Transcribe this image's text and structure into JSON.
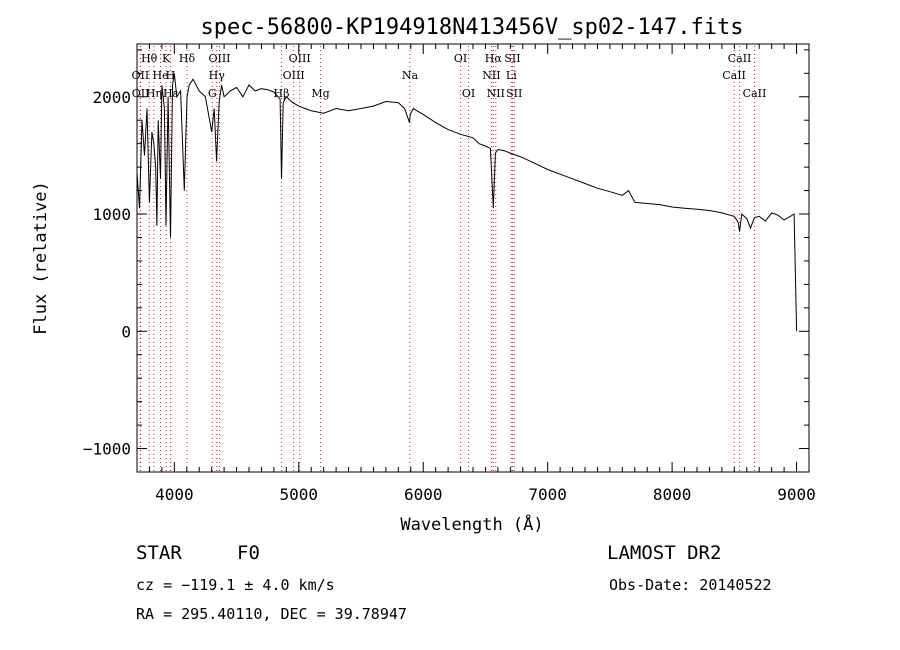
{
  "chart_data": {
    "type": "line",
    "title": "spec-56800-KP194918N413456V_sp02-147.fits",
    "xlabel": "Wavelength (Å)",
    "ylabel": "Flux (relative)",
    "xlim": [
      3700,
      9100
    ],
    "ylim": [
      -1200,
      2450
    ],
    "xticks": [
      4000,
      5000,
      6000,
      7000,
      8000,
      9000
    ],
    "yticks": [
      -1000,
      0,
      1000,
      2000
    ],
    "series": [
      {
        "name": "flux",
        "x": [
          3700,
          3720,
          3740,
          3760,
          3780,
          3800,
          3820,
          3835,
          3850,
          3860,
          3870,
          3889,
          3900,
          3920,
          3933,
          3950,
          3969,
          3985,
          4000,
          4020,
          4050,
          4080,
          4102,
          4120,
          4150,
          4200,
          4250,
          4300,
          4320,
          4340,
          4360,
          4380,
          4400,
          4450,
          4500,
          4550,
          4600,
          4650,
          4700,
          4750,
          4800,
          4850,
          4861,
          4875,
          4900,
          4950,
          5000,
          5050,
          5100,
          5150,
          5200,
          5300,
          5400,
          5500,
          5600,
          5700,
          5800,
          5850,
          5890,
          5896,
          5920,
          5950,
          6000,
          6100,
          6200,
          6300,
          6400,
          6450,
          6500,
          6540,
          6563,
          6580,
          6600,
          6650,
          6700,
          6750,
          6800,
          6900,
          7000,
          7100,
          7200,
          7300,
          7400,
          7500,
          7600,
          7650,
          7700,
          7800,
          7900,
          8000,
          8100,
          8200,
          8300,
          8400,
          8500,
          8530,
          8542,
          8560,
          8600,
          8630,
          8662,
          8700,
          8750,
          8800,
          8850,
          8900,
          8950,
          8980,
          9000
        ],
        "values": [
          1350,
          1050,
          1800,
          1500,
          1900,
          1100,
          1700,
          1600,
          1400,
          900,
          1800,
          1300,
          2100,
          1900,
          900,
          2000,
          800,
          2100,
          2200,
          2000,
          2050,
          1200,
          2000,
          2100,
          2150,
          2050,
          2000,
          1700,
          1900,
          1450,
          1950,
          2100,
          2000,
          2050,
          2080,
          2000,
          2100,
          2050,
          2070,
          2060,
          2040,
          1980,
          1300,
          1950,
          2000,
          1950,
          1920,
          1900,
          1880,
          1870,
          1860,
          1900,
          1880,
          1900,
          1920,
          1960,
          1950,
          1900,
          1780,
          1850,
          1900,
          1880,
          1850,
          1780,
          1720,
          1680,
          1650,
          1600,
          1580,
          1560,
          1050,
          1520,
          1550,
          1540,
          1520,
          1500,
          1480,
          1430,
          1380,
          1340,
          1300,
          1260,
          1220,
          1190,
          1160,
          1200,
          1100,
          1090,
          1080,
          1060,
          1050,
          1040,
          1030,
          1010,
          980,
          930,
          850,
          1000,
          960,
          880,
          970,
          980,
          940,
          1010,
          990,
          950,
          980,
          1000,
          0
        ]
      }
    ],
    "line_markers": [
      {
        "label": "Hθ",
        "wavelength": 3798,
        "row": 1
      },
      {
        "label": "OII",
        "wavelength": 3727,
        "row": 2
      },
      {
        "label": "OII",
        "wavelength": 3729,
        "row": 3
      },
      {
        "label": "Hη",
        "wavelength": 3836,
        "row": 3
      },
      {
        "label": "K",
        "wavelength": 3934,
        "row": 1
      },
      {
        "label": "He",
        "wavelength": 3889,
        "row": 2
      },
      {
        "label": "H",
        "wavelength": 3969,
        "row": 2
      },
      {
        "label": "Hε",
        "wavelength": 3970,
        "row": 3
      },
      {
        "label": "Hδ",
        "wavelength": 4102,
        "row": 1
      },
      {
        "label": "OIII",
        "wavelength": 4363,
        "row": 1
      },
      {
        "label": "Hγ",
        "wavelength": 4341,
        "row": 2
      },
      {
        "label": "G",
        "wavelength": 4305,
        "row": 3
      },
      {
        "label": "OIII",
        "wavelength": 5007,
        "row": 1
      },
      {
        "label": "OIII",
        "wavelength": 4959,
        "row": 2
      },
      {
        "label": "Hβ",
        "wavelength": 4861,
        "row": 3
      },
      {
        "label": "Mg",
        "wavelength": 5175,
        "row": 3
      },
      {
        "label": "Na",
        "wavelength": 5893,
        "row": 2
      },
      {
        "label": "OI",
        "wavelength": 6300,
        "row": 1
      },
      {
        "label": "OI",
        "wavelength": 6364,
        "row": 3
      },
      {
        "label": "Hα",
        "wavelength": 6563,
        "row": 1
      },
      {
        "label": "SII",
        "wavelength": 6717,
        "row": 1
      },
      {
        "label": "NII",
        "wavelength": 6548,
        "row": 2
      },
      {
        "label": "Li",
        "wavelength": 6708,
        "row": 2
      },
      {
        "label": "NII",
        "wavelength": 6583,
        "row": 3
      },
      {
        "label": "SII",
        "wavelength": 6731,
        "row": 3
      },
      {
        "label": "CaII",
        "wavelength": 8542,
        "row": 1
      },
      {
        "label": "CaII",
        "wavelength": 8498,
        "row": 2
      },
      {
        "label": "CaII",
        "wavelength": 8662,
        "row": 3
      }
    ]
  },
  "info": {
    "object_class": "STAR",
    "subclass": "F0",
    "survey": "LAMOST DR2",
    "redshift_text": "cz = −119.1 ± 4.0 km/s",
    "obs_date": "Obs-Date: 20140522",
    "coordinates": "RA = 295.40110, DEC =  39.78947"
  },
  "colors": {
    "axis": "#000000",
    "line": "#000000",
    "marker_line": "#cc2222"
  }
}
